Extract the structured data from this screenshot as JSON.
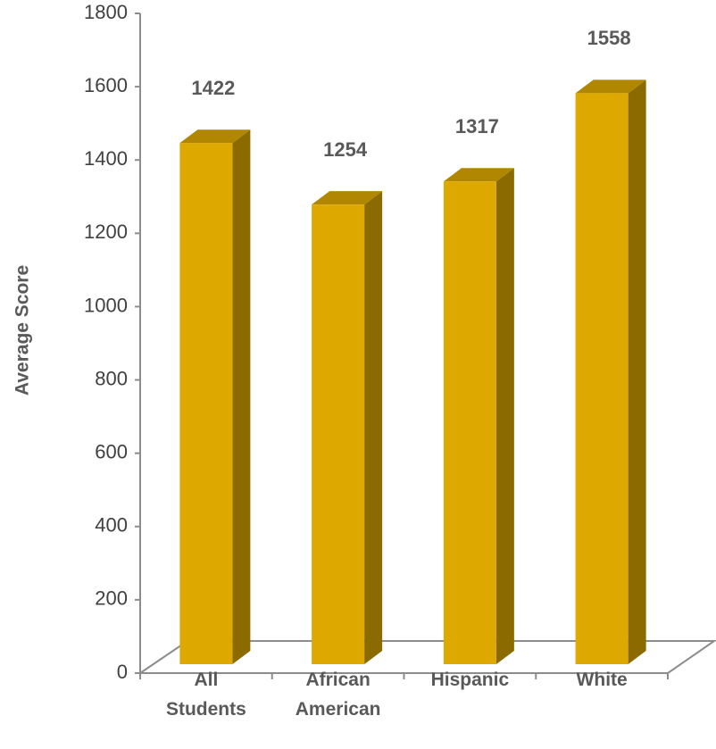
{
  "chart_data": {
    "type": "bar3d",
    "y_label": "Average Score",
    "categories": [
      "All Students",
      "African American",
      "Hispanic",
      "White"
    ],
    "values": [
      1422,
      1254,
      1317,
      1558
    ],
    "color": "#dda800",
    "ylim": [
      0,
      1800
    ],
    "yticks": [
      0,
      200,
      400,
      600,
      800,
      1000,
      1200,
      1400,
      1600,
      1800
    ]
  }
}
